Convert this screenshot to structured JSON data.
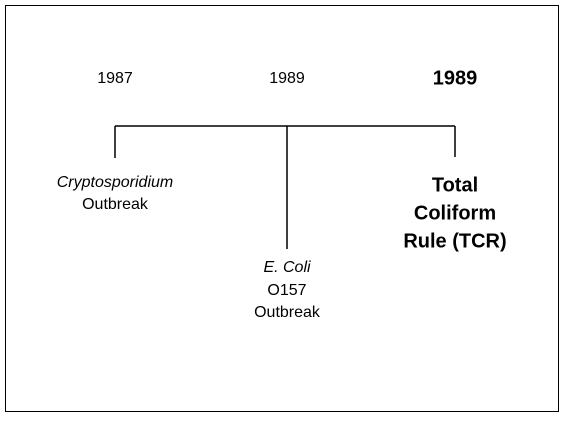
{
  "events": [
    {
      "year": "1987",
      "lines": [
        "Cryptosporidium",
        "Outbreak"
      ]
    },
    {
      "year": "1989",
      "lines": [
        "E. Coli",
        "O157",
        "Outbreak"
      ]
    },
    {
      "year": "1989",
      "lines": [
        "Total",
        "Coliform",
        "Rule (TCR)"
      ]
    }
  ]
}
